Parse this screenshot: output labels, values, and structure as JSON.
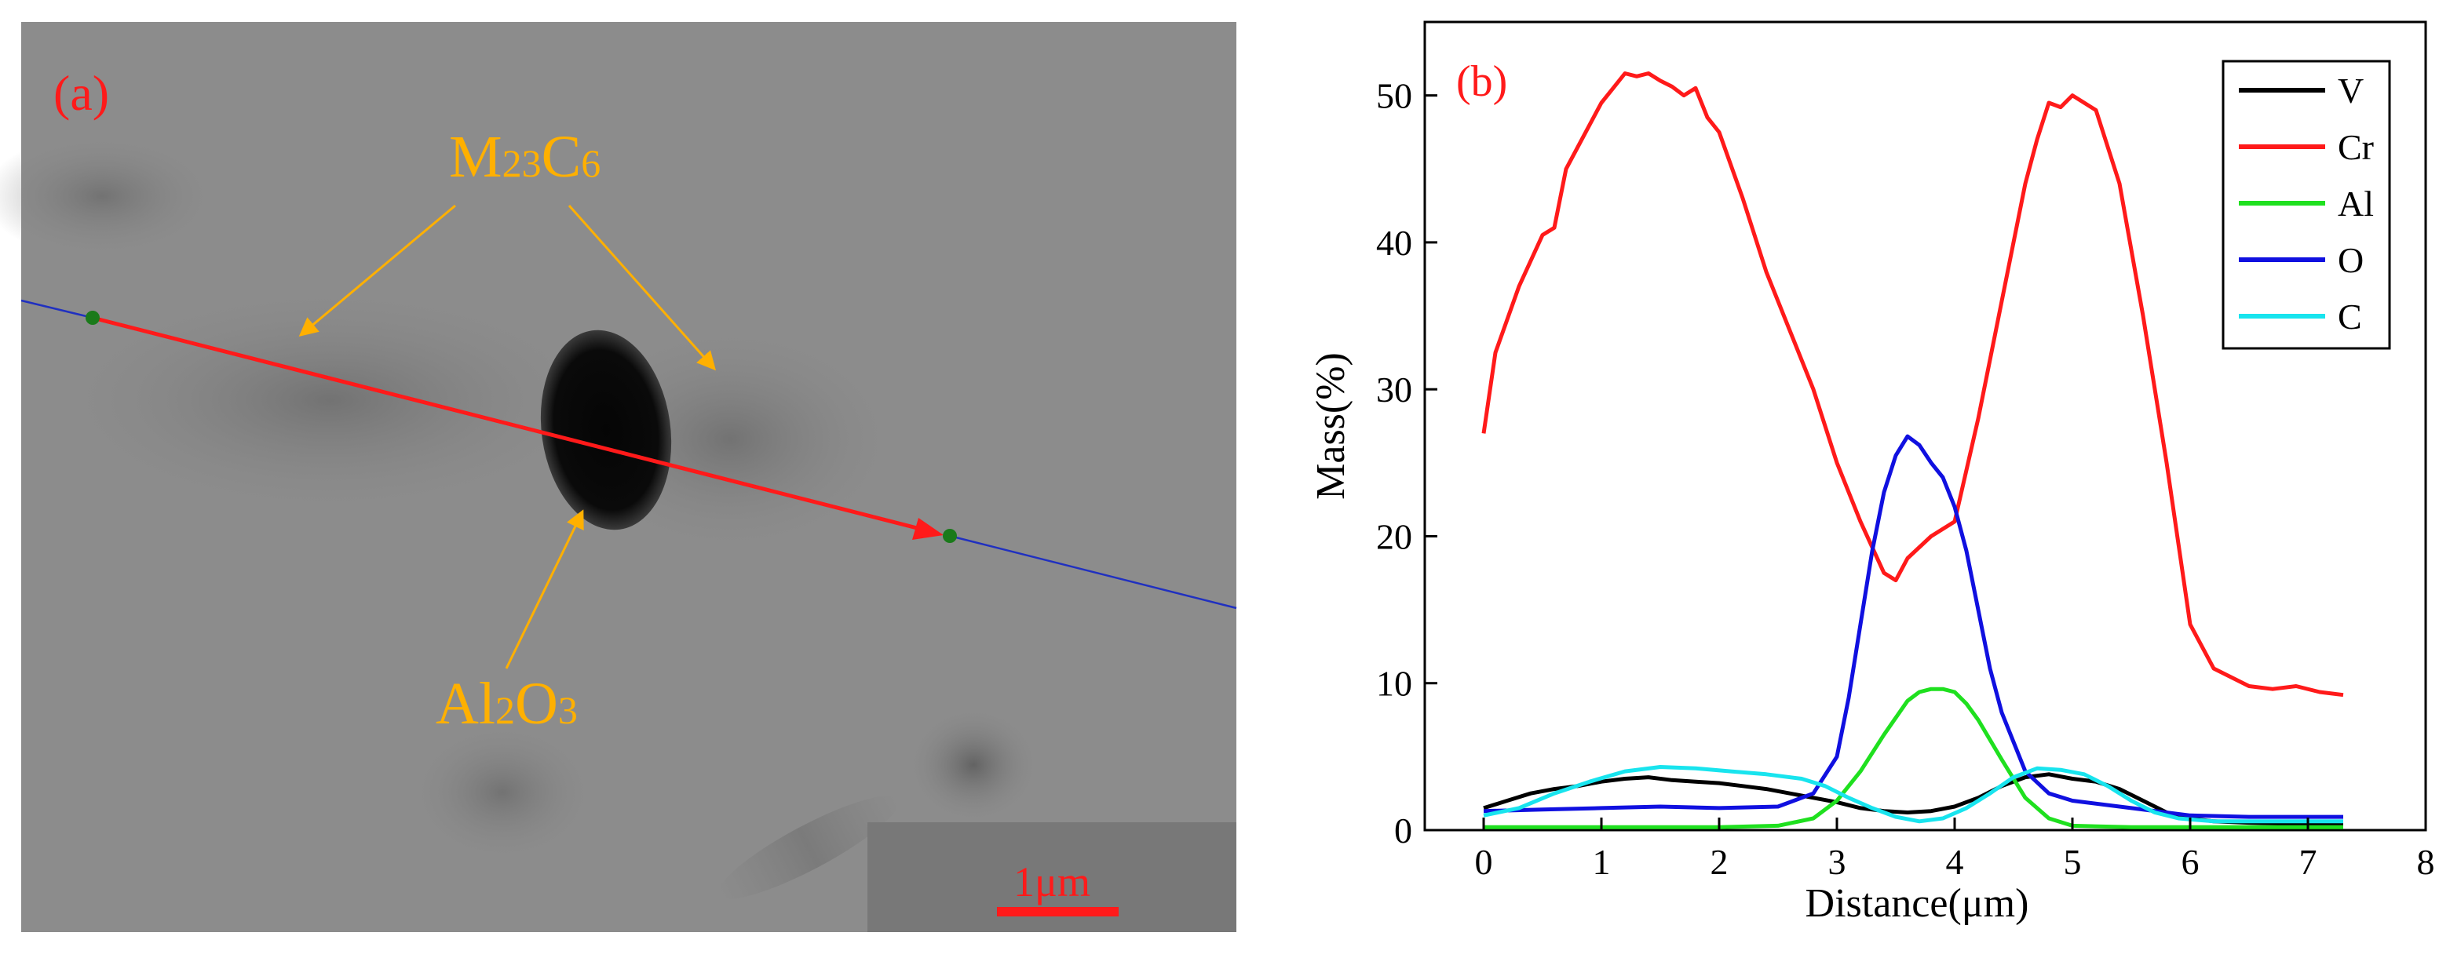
{
  "panel_a": {
    "label": "(a)",
    "annotations": {
      "carbide": {
        "base": "M",
        "sub1": "23",
        "mid": "C",
        "sub2": "6"
      },
      "oxide": {
        "base": "Al",
        "sub1": "2",
        "mid": "O",
        "sub2": "3"
      }
    },
    "scale_bar": {
      "label": "1μm"
    },
    "colors": {
      "label": "#ff1a1a",
      "annotation": "#ffb000",
      "scan_line": "#ff1a1a",
      "extension_line": "#2030c0",
      "endpoint": "#1a7a1a"
    }
  },
  "chart_data": {
    "type": "line",
    "panel_label": "(b)",
    "title": "",
    "xlabel": "Distance(μm)",
    "ylabel": "Mass(%)",
    "xlim": [
      -0.5,
      8
    ],
    "ylim": [
      0,
      55
    ],
    "x_ticks": [
      0,
      1,
      2,
      3,
      4,
      5,
      6,
      7,
      8
    ],
    "y_ticks": [
      0,
      10,
      20,
      30,
      40,
      50
    ],
    "legend_position": "top-right",
    "series": [
      {
        "name": "V",
        "color": "#000000",
        "x": [
          0,
          0.2,
          0.4,
          0.6,
          0.8,
          1.0,
          1.2,
          1.4,
          1.6,
          1.8,
          2.0,
          2.2,
          2.4,
          2.6,
          2.8,
          3.0,
          3.2,
          3.4,
          3.6,
          3.8,
          4.0,
          4.2,
          4.4,
          4.6,
          4.8,
          5.0,
          5.2,
          5.4,
          5.6,
          5.8,
          6.0,
          6.2,
          6.5,
          7.0,
          7.3
        ],
        "y": [
          1.5,
          2.0,
          2.5,
          2.8,
          3.0,
          3.3,
          3.5,
          3.6,
          3.4,
          3.3,
          3.2,
          3.0,
          2.8,
          2.5,
          2.2,
          1.9,
          1.5,
          1.3,
          1.2,
          1.3,
          1.6,
          2.2,
          3.0,
          3.6,
          3.8,
          3.5,
          3.3,
          2.8,
          2.0,
          1.2,
          0.8,
          0.6,
          0.5,
          0.4,
          0.4
        ]
      },
      {
        "name": "Cr",
        "color": "#ff1a1a",
        "x": [
          0,
          0.1,
          0.3,
          0.5,
          0.6,
          0.7,
          0.8,
          1.0,
          1.1,
          1.2,
          1.3,
          1.4,
          1.5,
          1.6,
          1.7,
          1.8,
          1.9,
          2.0,
          2.2,
          2.4,
          2.6,
          2.8,
          3.0,
          3.2,
          3.4,
          3.5,
          3.6,
          3.8,
          4.0,
          4.2,
          4.4,
          4.5,
          4.6,
          4.7,
          4.8,
          4.9,
          5.0,
          5.2,
          5.4,
          5.6,
          5.8,
          6.0,
          6.2,
          6.5,
          6.7,
          6.9,
          7.1,
          7.3
        ],
        "y": [
          27,
          32.5,
          37,
          40.5,
          41,
          45,
          46.5,
          49.5,
          50.5,
          51.5,
          51.3,
          51.5,
          51.0,
          50.6,
          50.0,
          50.5,
          48.5,
          47.5,
          43,
          38,
          34,
          30,
          25,
          21,
          17.5,
          17,
          18.5,
          20,
          21,
          28,
          36,
          40,
          44,
          47,
          49.5,
          49.2,
          50,
          49,
          44,
          35,
          25,
          14,
          11,
          9.8,
          9.6,
          9.8,
          9.4,
          9.2
        ]
      },
      {
        "name": "Al",
        "color": "#1fe01f",
        "x": [
          0,
          0.5,
          1.0,
          1.5,
          2.0,
          2.5,
          2.8,
          3.0,
          3.2,
          3.4,
          3.6,
          3.7,
          3.8,
          3.9,
          4.0,
          4.1,
          4.2,
          4.4,
          4.6,
          4.8,
          5.0,
          5.5,
          6.0,
          7.0,
          7.3
        ],
        "y": [
          0.2,
          0.2,
          0.2,
          0.2,
          0.2,
          0.3,
          0.8,
          2.0,
          4.0,
          6.5,
          8.8,
          9.4,
          9.6,
          9.6,
          9.4,
          8.6,
          7.5,
          4.8,
          2.2,
          0.8,
          0.3,
          0.2,
          0.2,
          0.2,
          0.2
        ]
      },
      {
        "name": "O",
        "color": "#1010e0",
        "x": [
          0,
          0.5,
          1.0,
          1.5,
          2.0,
          2.5,
          2.8,
          3.0,
          3.1,
          3.2,
          3.3,
          3.4,
          3.5,
          3.6,
          3.7,
          3.8,
          3.9,
          4.0,
          4.1,
          4.2,
          4.3,
          4.4,
          4.6,
          4.8,
          5.0,
          5.5,
          6.0,
          6.5,
          7.0,
          7.3
        ],
        "y": [
          1.3,
          1.4,
          1.5,
          1.6,
          1.5,
          1.6,
          2.5,
          5.0,
          9.0,
          14.0,
          19.0,
          23.0,
          25.5,
          26.8,
          26.2,
          25.0,
          24.0,
          22.0,
          19.0,
          15.0,
          11.0,
          8.0,
          4.0,
          2.5,
          2.0,
          1.5,
          1.0,
          0.9,
          0.9,
          0.9
        ]
      },
      {
        "name": "C",
        "color": "#18e4ee",
        "x": [
          0,
          0.3,
          0.6,
          0.9,
          1.2,
          1.5,
          1.8,
          2.1,
          2.4,
          2.7,
          2.9,
          3.1,
          3.3,
          3.5,
          3.7,
          3.9,
          4.1,
          4.3,
          4.5,
          4.7,
          4.9,
          5.1,
          5.3,
          5.5,
          5.7,
          5.9,
          6.2,
          6.5,
          7.0,
          7.3
        ],
        "y": [
          1.0,
          1.5,
          2.5,
          3.3,
          4.0,
          4.3,
          4.2,
          4.0,
          3.8,
          3.5,
          3.0,
          2.2,
          1.5,
          0.9,
          0.6,
          0.8,
          1.5,
          2.5,
          3.6,
          4.2,
          4.1,
          3.8,
          3.0,
          2.0,
          1.2,
          0.8,
          0.6,
          0.6,
          0.6,
          0.6
        ]
      }
    ]
  }
}
